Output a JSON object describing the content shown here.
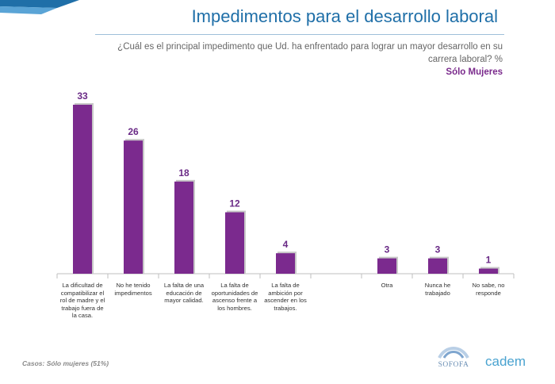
{
  "header": {
    "title": "Impedimentos para el desarrollo laboral",
    "question": "¿Cuál es el principal impedimento que Ud. ha enfrentado para lograr un mayor desarrollo en su carrera laboral? %",
    "subset": "Sólo Mujeres"
  },
  "chart_data": {
    "type": "bar",
    "title": "Impedimentos para el desarrollo laboral",
    "categories": [
      "La dificultad de compatibilizar el rol de madre y el trabajo fuera de la casa.",
      "No he tenido impedimentos",
      "La falta de una educación de mayor calidad.",
      "La falta de oportunidades de ascenso frente a los hombres.",
      "La falta de ambición por ascender en los trabajos.",
      "",
      "Otra",
      "Nunca he trabajado",
      "No sabe, no responde"
    ],
    "values": [
      33,
      26,
      18,
      12,
      4,
      null,
      3,
      3,
      1
    ],
    "value_labels": [
      "33",
      "26",
      "18",
      "12",
      "4",
      "",
      "3",
      "3",
      "1"
    ],
    "ylim": [
      0,
      35
    ],
    "xlabel": "",
    "ylabel": "%",
    "bar_color": "#7b2a8e"
  },
  "footer": {
    "cases": "Casos: Sólo mujeres (51%)",
    "logo_left": "SOFOFA",
    "logo_right": "cadem"
  }
}
